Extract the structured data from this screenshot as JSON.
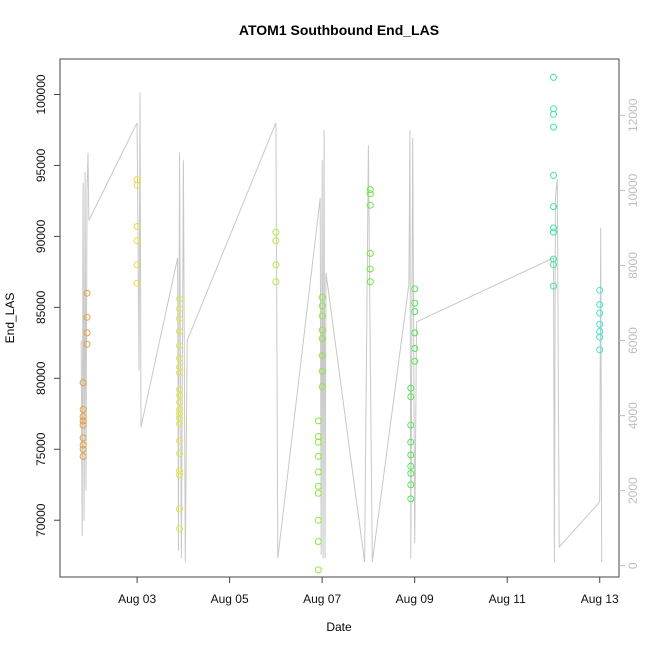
{
  "chart_data": {
    "type": "scatter",
    "title": "ATOM1 Southbound End_LAS",
    "xlabel": "Date",
    "ylabel": "End_LAS",
    "xlim": [
      "2022-08-01T08:00",
      "2022-08-13T10:00"
    ],
    "ylim": [
      66000,
      102500
    ],
    "y2lim": [
      -300,
      13500
    ],
    "x_ticks": [
      {
        "date": "2022-08-03",
        "label": "Aug 03"
      },
      {
        "date": "2022-08-05",
        "label": "Aug 05"
      },
      {
        "date": "2022-08-07",
        "label": "Aug 07"
      },
      {
        "date": "2022-08-09",
        "label": "Aug 09"
      },
      {
        "date": "2022-08-11",
        "label": "Aug 11"
      },
      {
        "date": "2022-08-13",
        "label": "Aug 13"
      }
    ],
    "y_ticks": [
      70000,
      75000,
      80000,
      85000,
      90000,
      95000,
      100000
    ],
    "y2_ticks": [
      0,
      2000,
      4000,
      6000,
      8000,
      10000,
      12000
    ],
    "grid": false,
    "legend": "none",
    "colors": {
      "points_start": "#e8a040",
      "points_end": "#40e8c8",
      "secondary_line": "#c8c8c8",
      "axes": "#444444",
      "secondary_axis": "#bdbdbd"
    },
    "point_series": [
      {
        "date": "2022-08-01T20:00",
        "color": "#e8a040",
        "values": [
          74500,
          75000,
          75300,
          75800,
          76700,
          77000,
          77300,
          77800,
          79700
        ]
      },
      {
        "date": "2022-08-01T22:00",
        "color": "#e8a040",
        "values": [
          82400,
          83200,
          84300,
          86000
        ]
      },
      {
        "date": "2022-08-03T00:00",
        "color": "#e8dc40",
        "values": [
          86700,
          88000,
          89700,
          90700,
          93600,
          94000
        ]
      },
      {
        "date": "2022-08-03T22:00",
        "color": "#e2e840",
        "values": [
          69400,
          70800,
          73200,
          73500,
          74700,
          75600,
          76800,
          77200,
          77500,
          77800,
          78300,
          78800,
          79200,
          80400,
          80800,
          81400,
          82300,
          83300,
          84200,
          84900,
          85600
        ]
      },
      {
        "date": "2022-08-06T00:00",
        "color": "#b2e840",
        "values": [
          86800,
          88000,
          89700,
          90300
        ]
      },
      {
        "date": "2022-08-06T22:00",
        "color": "#8ce840",
        "values": [
          66500,
          68500,
          70000,
          71900,
          72400,
          73400,
          74500,
          75500,
          75900,
          77000
        ]
      },
      {
        "date": "2022-08-07T00:00",
        "color": "#8ce840",
        "values": [
          79400,
          80500,
          81600,
          82800,
          83400,
          84400,
          85100,
          85700
        ]
      },
      {
        "date": "2022-08-08T01:00",
        "color": "#6ae840",
        "values": [
          86800,
          87700,
          88800,
          92200,
          93000,
          93300
        ]
      },
      {
        "date": "2022-08-08T22:00",
        "color": "#4ee850",
        "values": [
          71500,
          72500,
          73300,
          73800,
          74600,
          75500,
          76700,
          78700,
          79300
        ]
      },
      {
        "date": "2022-08-09T00:00",
        "color": "#4ee850",
        "values": [
          81200,
          82100,
          83200,
          84700,
          85300,
          86300
        ]
      },
      {
        "date": "2022-08-12T00:00",
        "color": "#40e8a0",
        "values": [
          86500,
          88000,
          88400,
          90300,
          90600,
          92100,
          94300,
          97700,
          98600,
          99000,
          101200
        ]
      },
      {
        "date": "2022-08-13T00:00",
        "color": "#40e8c8",
        "values": [
          82000,
          82900,
          83300,
          83800,
          84600,
          85200,
          86200
        ]
      }
    ],
    "secondary_line": [
      [
        "2022-08-01T19:00",
        6000
      ],
      [
        "2022-08-01T19:30",
        800
      ],
      [
        "2022-08-01T20:00",
        10200
      ],
      [
        "2022-08-01T20:30",
        1200
      ],
      [
        "2022-08-01T21:00",
        10500
      ],
      [
        "2022-08-01T21:30",
        2000
      ],
      [
        "2022-08-01T22:00",
        10000
      ],
      [
        "2022-08-01T22:30",
        11000
      ],
      [
        "2022-08-01T23:00",
        9200
      ],
      [
        "2022-08-03T00:00",
        11800
      ],
      [
        "2022-08-03T01:00",
        5200
      ],
      [
        "2022-08-03T01:30",
        12600
      ],
      [
        "2022-08-03T02:00",
        3700
      ],
      [
        "2022-08-03T21:00",
        8200
      ],
      [
        "2022-08-03T21:30",
        400
      ],
      [
        "2022-08-03T22:00",
        11000
      ],
      [
        "2022-08-03T23:00",
        200
      ],
      [
        "2022-08-04T00:00",
        10800
      ],
      [
        "2022-08-04T01:00",
        100
      ],
      [
        "2022-08-04T02:00",
        6000
      ],
      [
        "2022-08-06T00:00",
        11800
      ],
      [
        "2022-08-06T00:30",
        6000
      ],
      [
        "2022-08-06T01:00",
        200
      ],
      [
        "2022-08-06T23:00",
        9800
      ],
      [
        "2022-08-06T23:30",
        300
      ],
      [
        "2022-08-07T00:00",
        10800
      ],
      [
        "2022-08-07T00:30",
        200
      ],
      [
        "2022-08-07T01:00",
        11600
      ],
      [
        "2022-08-07T01:30",
        200
      ],
      [
        "2022-08-07T02:00",
        7800
      ],
      [
        "2022-08-07T22:00",
        100
      ],
      [
        "2022-08-08T00:00",
        11200
      ],
      [
        "2022-08-08T01:00",
        5500
      ],
      [
        "2022-08-08T02:00",
        100
      ],
      [
        "2022-08-08T21:00",
        7500
      ],
      [
        "2022-08-08T21:30",
        11600
      ],
      [
        "2022-08-08T22:00",
        200
      ],
      [
        "2022-08-08T23:00",
        11400
      ],
      [
        "2022-08-09T00:00",
        600
      ],
      [
        "2022-08-09T01:00",
        6500
      ],
      [
        "2022-08-12T00:00",
        8200
      ],
      [
        "2022-08-12T00:30",
        100
      ],
      [
        "2022-08-12T01:00",
        9800
      ],
      [
        "2022-08-12T02:00",
        10300
      ],
      [
        "2022-08-12T03:00",
        500
      ],
      [
        "2022-08-13T00:00",
        1700
      ],
      [
        "2022-08-13T00:30",
        9000
      ],
      [
        "2022-08-13T01:00",
        100
      ]
    ]
  }
}
